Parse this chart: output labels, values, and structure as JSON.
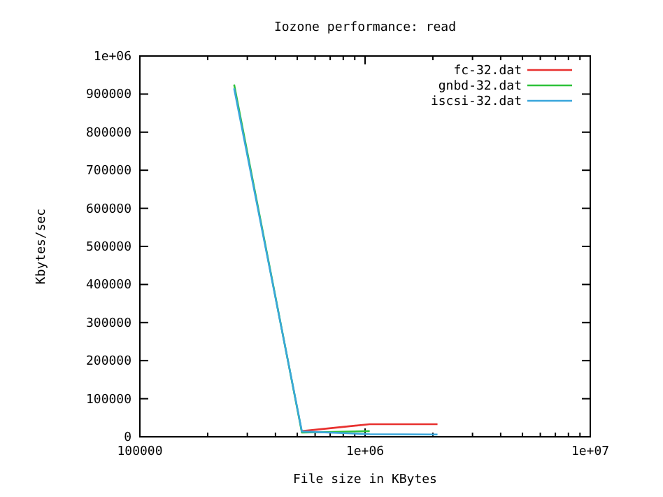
{
  "chart_data": {
    "type": "line",
    "title": "Iozone performance: read",
    "xlabel": "File size in KBytes",
    "ylabel": "Kbytes/sec",
    "log": "x",
    "xlim": [
      100000,
      10000000
    ],
    "xticks": [
      100000,
      {
        "value": 200000,
        "label": null
      },
      {
        "value": 300000,
        "label": null
      },
      {
        "value": 400000,
        "label": null
      },
      {
        "value": 500000,
        "label": null
      },
      {
        "value": 600000,
        "label": null
      },
      {
        "value": 700000,
        "label": null
      },
      {
        "value": 800000,
        "label": null
      },
      {
        "value": 900000,
        "label": null
      },
      {
        "value": 1000000,
        "label": "1e+06"
      },
      {
        "value": 2000000,
        "label": null
      },
      {
        "value": 3000000,
        "label": null
      },
      {
        "value": 4000000,
        "label": null
      },
      {
        "value": 5000000,
        "label": null
      },
      {
        "value": 6000000,
        "label": null
      },
      {
        "value": 7000000,
        "label": null
      },
      {
        "value": 8000000,
        "label": null
      },
      {
        "value": 9000000,
        "label": null
      },
      {
        "value": 10000000,
        "label": "1e+07"
      }
    ],
    "ylim": [
      0,
      1000000
    ],
    "yticks": [
      0,
      100000,
      200000,
      300000,
      400000,
      500000,
      600000,
      700000,
      800000,
      900000,
      {
        "value": 1000000,
        "label": "1e+06"
      }
    ],
    "grid": false,
    "legend": "top right",
    "marker": "none",
    "line_style": "solid",
    "series": [
      {
        "name": "fc-32.dat",
        "color": "#e8312f",
        "x": [
          524288,
          1048576,
          2097152
        ],
        "values": [
          15000,
          33000,
          33000
        ]
      },
      {
        "name": "gnbd-32.dat",
        "color": "#2ec23a",
        "x": [
          262144,
          524288,
          1048576
        ],
        "values": [
          925000,
          11000,
          15000
        ]
      },
      {
        "name": "iscsi-32.dat",
        "color": "#3aa6dc",
        "x": [
          262144,
          524288,
          1048576,
          2097152
        ],
        "values": [
          915000,
          14000,
          7000,
          6000
        ]
      }
    ]
  }
}
